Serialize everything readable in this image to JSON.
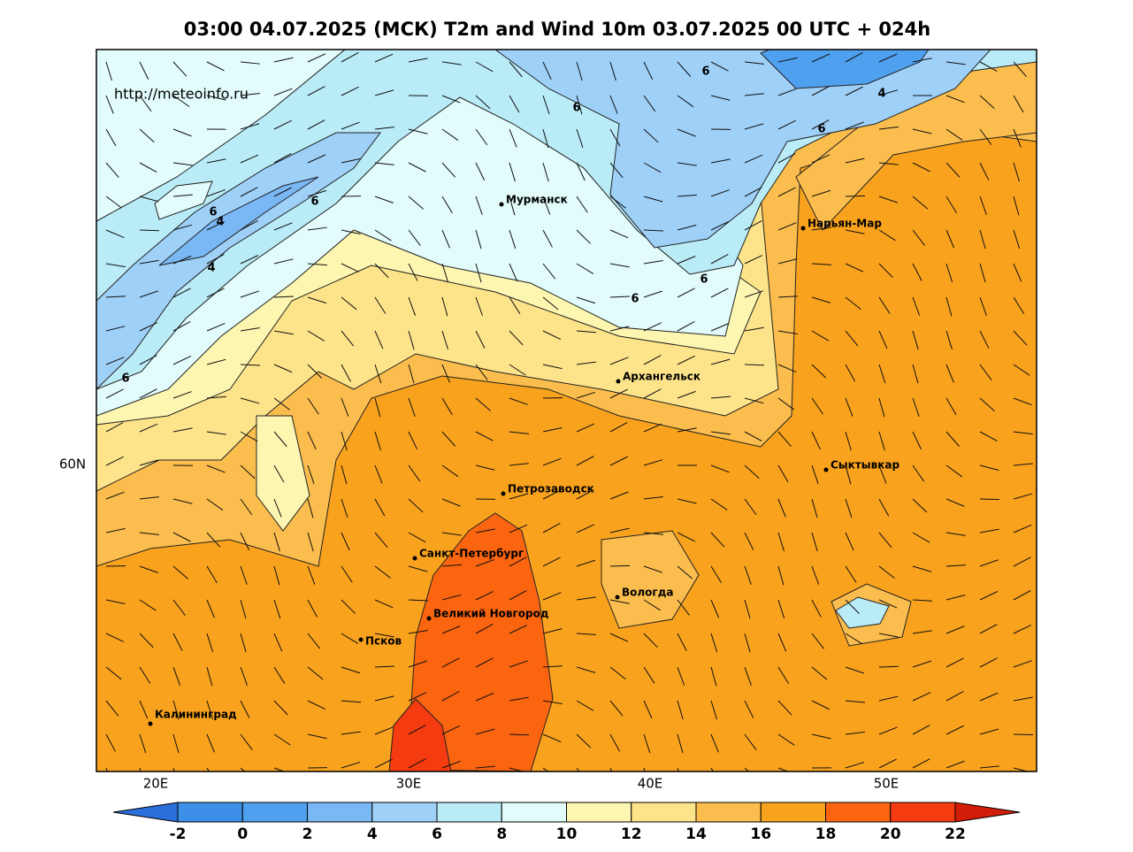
{
  "title": "03:00 04.07.2025 (МСК) T2m and Wind 10m 03.07.2025 00 UTC + 024h",
  "watermark": "http://meteoinfo.ru",
  "map": {
    "lon_labels": [
      "20E",
      "30E",
      "40E",
      "50E"
    ],
    "lat_labels": [
      "60N"
    ],
    "cities": [
      "Мурманск",
      "Нарьян-Мар",
      "Архангельск",
      "Сыктывкар",
      "Петрозаводск",
      "Санкт-Петербург",
      "Вологда",
      "Великий Новгород",
      "Псков",
      "Калининград"
    ],
    "contour_labels": [
      "6",
      "6",
      "4",
      "6",
      "6",
      "6",
      "4",
      "4",
      "6",
      "6",
      "6"
    ]
  },
  "colorbar": {
    "ticks": [
      -2,
      0,
      2,
      4,
      6,
      8,
      10,
      12,
      14,
      16,
      18,
      20,
      22
    ],
    "colors": [
      "#2a6fdb",
      "#3d8fe8",
      "#4fa0ee",
      "#7ab8f5",
      "#9fd0f8",
      "#b9ecf7",
      "#e2fbfb",
      "#fdf6b1",
      "#fde48a",
      "#fbbd4d",
      "#f9a21d",
      "#fb6510",
      "#f53b10",
      "#d41d08"
    ]
  }
}
